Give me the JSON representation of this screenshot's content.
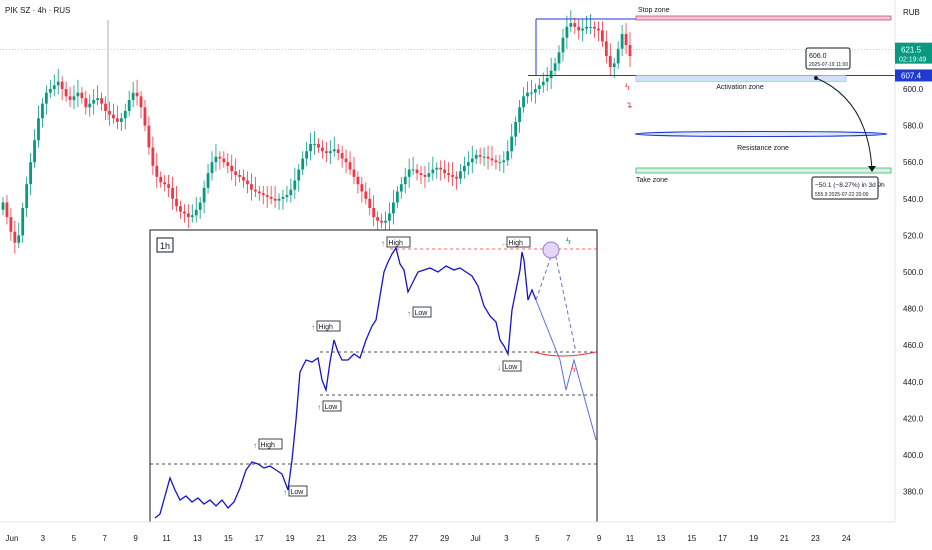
{
  "header": {
    "symbol": "PIK SZ",
    "interval": "4h",
    "exchange": "RUS"
  },
  "currency": "RUB",
  "colors": {
    "bull": "#089981",
    "bear": "#f23645",
    "line": "#1515c8",
    "zone_blue": "#1e3ad0",
    "stop": "#c0507a",
    "take": "#3cb371",
    "activation_fill": "#cfe3f7"
  },
  "price_axis": {
    "ticks": [
      380,
      400,
      420,
      440,
      460,
      480,
      500,
      520,
      540,
      560,
      580,
      600
    ]
  },
  "time_axis": {
    "ticks": [
      "Jun",
      "3",
      "5",
      "7",
      "9",
      "11",
      "13",
      "15",
      "17",
      "19",
      "21",
      "23",
      "25",
      "27",
      "29",
      "Jul",
      "3",
      "5",
      "7",
      "9",
      "11",
      "13",
      "15",
      "17",
      "19",
      "21",
      "23",
      "24"
    ]
  },
  "price_labels": {
    "current": "621.5",
    "countdown": "02:19:49",
    "level": "607.4"
  },
  "zones": {
    "stop": {
      "label": "Stop zone",
      "from": 643,
      "to": 645
    },
    "activation": {
      "label": "Activation zone",
      "from": 603,
      "to": 607
    },
    "resistance": {
      "label": "Resistance zone",
      "from": 575,
      "to": 577
    },
    "take": {
      "label": "Take zone",
      "from": 556,
      "to": 558
    }
  },
  "callouts": {
    "start": {
      "price": "606.0",
      "time": "2025-07-19 11:00"
    },
    "end": {
      "change": "−50.1 (−8.27%) in 3d 9h",
      "price": "555.9",
      "time": "2025-07-22 20:00"
    }
  },
  "inset": {
    "timeframe": "1h",
    "labels": [
      {
        "text": "High",
        "dir": "up"
      },
      {
        "text": "Low",
        "dir": "up"
      },
      {
        "text": "High",
        "dir": "up"
      },
      {
        "text": "Low",
        "dir": "up"
      },
      {
        "text": "High",
        "dir": "up"
      },
      {
        "text": "Low",
        "dir": "up"
      },
      {
        "text": "High",
        "dir": "left"
      },
      {
        "text": "Low",
        "dir": "down"
      }
    ]
  },
  "chart_data": {
    "type": "candlestick",
    "title": "PIK SZ · 4h · RUS",
    "ylim": [
      365,
      650
    ],
    "grid": false,
    "series": [
      {
        "name": "PIK SZ",
        "values": [
          538,
          530,
          522,
          516,
          520,
          535,
          548,
          560,
          572,
          584,
          592,
          598,
          600,
          602,
          604,
          600,
          596,
          594,
          596,
          598,
          595,
          590,
          592,
          594,
          595,
          592,
          588,
          586,
          584,
          582,
          584,
          588,
          594,
          598,
          596,
          590,
          580,
          568,
          558,
          552,
          549,
          548,
          546,
          540,
          536,
          533,
          532,
          530,
          531,
          534,
          538,
          546,
          554,
          560,
          563,
          562,
          560,
          558,
          555,
          553,
          552,
          550,
          548,
          545,
          544,
          543,
          542,
          541,
          540,
          539,
          540,
          541,
          542,
          545,
          550,
          556,
          562,
          566,
          570,
          570,
          568,
          566,
          565,
          566,
          567,
          565,
          562,
          560,
          556,
          552,
          548,
          544,
          540,
          535,
          530,
          528,
          527,
          528,
          532,
          538,
          544,
          548,
          552,
          556,
          556,
          554,
          553,
          552,
          554,
          556,
          557,
          556,
          554,
          553,
          552,
          551,
          555,
          558,
          560,
          562,
          564,
          563,
          563,
          562,
          561,
          560,
          560,
          561,
          566,
          574,
          582,
          590,
          596,
          598,
          598,
          600,
          602,
          604,
          606,
          610,
          614,
          620,
          628,
          634,
          636,
          634,
          632,
          633,
          634,
          634,
          633,
          632,
          626,
          618,
          612,
          614,
          622,
          630,
          624,
          618
        ]
      }
    ]
  }
}
